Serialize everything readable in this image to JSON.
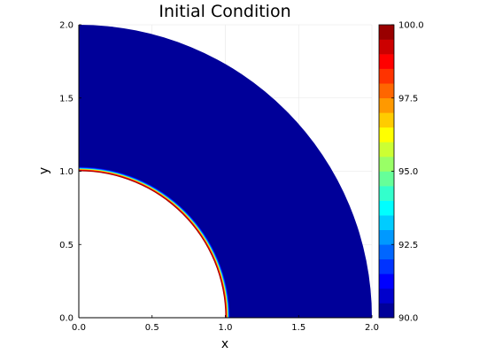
{
  "chart_data": {
    "type": "heatmap",
    "title": "Initial Condition",
    "xlabel": "x",
    "ylabel": "y",
    "xlim": [
      0.0,
      2.0
    ],
    "ylim": [
      0.0,
      2.0
    ],
    "x_ticks": [
      "0.0",
      "0.5",
      "1.0",
      "1.5",
      "2.0"
    ],
    "y_ticks": [
      "0.0",
      "0.5",
      "1.0",
      "1.5",
      "2.0"
    ],
    "grid": true,
    "domain": {
      "shape": "quarter annulus",
      "r_inner": 1.0,
      "r_outer": 2.0,
      "theta_range_deg": [
        0,
        90
      ]
    },
    "field": {
      "background_value": 90.0,
      "peak_value": 100.0,
      "peak_radius": 1.0,
      "profile": [
        {
          "r": 1.0,
          "value": 100.0
        },
        {
          "r": 1.008,
          "value": 99.0
        },
        {
          "r": 1.015,
          "value": 96.0
        },
        {
          "r": 1.02,
          "value": 93.0
        },
        {
          "r": 1.03,
          "value": 90.5
        },
        {
          "r": 1.04,
          "value": 90.0
        },
        {
          "r": 2.0,
          "value": 90.0
        }
      ]
    },
    "colorbar": {
      "colormap": "jet",
      "min": 90.0,
      "max": 100.0,
      "levels": 20,
      "tick_labels": [
        "90.0",
        "92.5",
        "95.0",
        "97.5",
        "100.0"
      ],
      "tick_values": [
        90.0,
        92.5,
        95.0,
        97.5,
        100.0
      ]
    }
  }
}
